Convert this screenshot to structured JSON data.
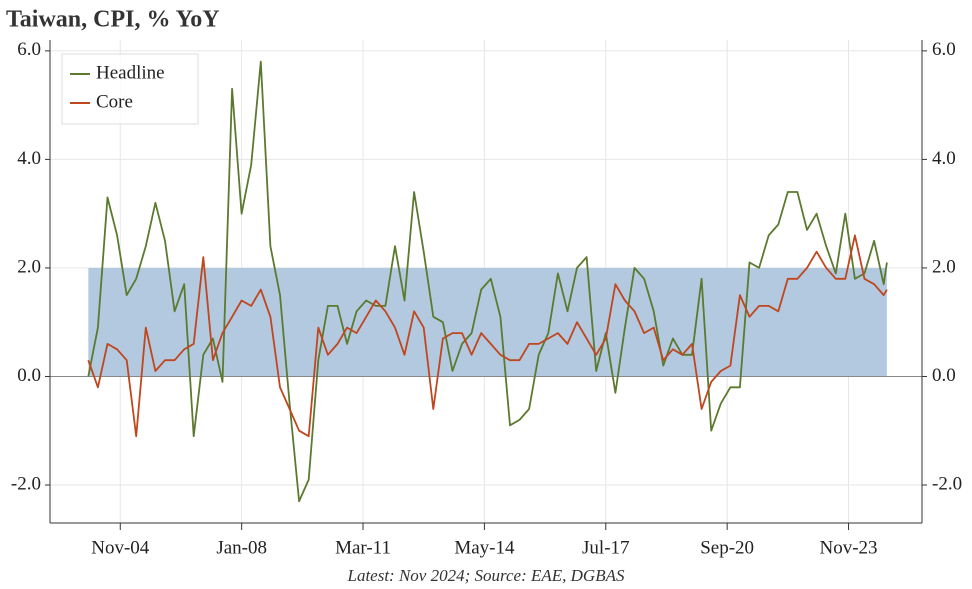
{
  "chart_data": {
    "type": "line",
    "title": "Taiwan, CPI, % YoY",
    "footnote": "Latest: Nov 2024; Source: EAE, DGBAS",
    "x": [
      "2004-01",
      "2004-04",
      "2004-07",
      "2004-10",
      "2005-01",
      "2005-04",
      "2005-07",
      "2005-10",
      "2006-01",
      "2006-04",
      "2006-07",
      "2006-10",
      "2007-01",
      "2007-04",
      "2007-07",
      "2007-10",
      "2008-01",
      "2008-04",
      "2008-07",
      "2008-10",
      "2009-01",
      "2009-04",
      "2009-07",
      "2009-10",
      "2010-01",
      "2010-04",
      "2010-07",
      "2010-10",
      "2011-01",
      "2011-04",
      "2011-07",
      "2011-10",
      "2012-01",
      "2012-04",
      "2012-07",
      "2012-10",
      "2013-01",
      "2013-04",
      "2013-07",
      "2013-10",
      "2014-01",
      "2014-04",
      "2014-07",
      "2014-10",
      "2015-01",
      "2015-04",
      "2015-07",
      "2015-10",
      "2016-01",
      "2016-04",
      "2016-07",
      "2016-10",
      "2017-01",
      "2017-04",
      "2017-07",
      "2017-10",
      "2018-01",
      "2018-04",
      "2018-07",
      "2018-10",
      "2019-01",
      "2019-04",
      "2019-07",
      "2019-10",
      "2020-01",
      "2020-04",
      "2020-07",
      "2020-10",
      "2021-01",
      "2021-04",
      "2021-07",
      "2021-10",
      "2022-01",
      "2022-04",
      "2022-07",
      "2022-10",
      "2023-01",
      "2023-04",
      "2023-07",
      "2023-10",
      "2024-01",
      "2024-04",
      "2024-07",
      "2024-10",
      "2024-11"
    ],
    "series": [
      {
        "name": "Headline",
        "color": "#5b7a2f",
        "values": [
          0.0,
          0.9,
          3.3,
          2.6,
          1.5,
          1.8,
          2.4,
          3.2,
          2.5,
          1.2,
          1.7,
          -1.1,
          0.4,
          0.7,
          -0.1,
          5.3,
          3.0,
          3.9,
          5.8,
          2.4,
          1.5,
          -0.5,
          -2.3,
          -1.9,
          0.3,
          1.3,
          1.3,
          0.6,
          1.2,
          1.4,
          1.3,
          1.3,
          2.4,
          1.4,
          3.4,
          2.3,
          1.1,
          1.0,
          0.1,
          0.6,
          0.8,
          1.6,
          1.8,
          1.1,
          -0.9,
          -0.8,
          -0.6,
          0.4,
          0.8,
          1.9,
          1.2,
          2.0,
          2.2,
          0.1,
          0.8,
          -0.3,
          0.9,
          2.0,
          1.8,
          1.2,
          0.2,
          0.7,
          0.4,
          0.4,
          1.8,
          -1.0,
          -0.5,
          -0.2,
          -0.2,
          2.1,
          2.0,
          2.6,
          2.8,
          3.4,
          3.4,
          2.7,
          3.0,
          2.4,
          1.9,
          3.0,
          1.8,
          1.9,
          2.5,
          1.7,
          2.1
        ]
      },
      {
        "name": "Core",
        "color": "#c0461e",
        "values": [
          0.3,
          -0.2,
          0.6,
          0.5,
          0.3,
          -1.1,
          0.9,
          0.1,
          0.3,
          0.3,
          0.5,
          0.6,
          2.2,
          0.3,
          0.8,
          1.1,
          1.4,
          1.3,
          1.6,
          1.1,
          -0.2,
          -0.6,
          -1.0,
          -1.1,
          0.9,
          0.4,
          0.6,
          0.9,
          0.8,
          1.1,
          1.4,
          1.2,
          0.9,
          0.4,
          1.2,
          0.9,
          -0.6,
          0.7,
          0.8,
          0.8,
          0.4,
          0.8,
          0.6,
          0.4,
          0.3,
          0.3,
          0.6,
          0.6,
          0.7,
          0.8,
          0.6,
          1.0,
          0.7,
          0.4,
          0.7,
          1.7,
          1.4,
          1.2,
          0.8,
          0.9,
          0.3,
          0.5,
          0.4,
          0.6,
          -0.6,
          -0.1,
          0.1,
          0.2,
          1.5,
          1.1,
          1.3,
          1.3,
          1.2,
          1.8,
          1.8,
          2.0,
          2.3,
          2.0,
          1.8,
          1.8,
          2.6,
          1.8,
          1.7,
          1.5,
          1.6
        ]
      }
    ],
    "shaded_range": [
      0,
      2
    ],
    "shaded_color": "#b2c9df",
    "xlim": [
      "2003-01",
      "2025-10"
    ],
    "xticks": [
      {
        "value": "2004-11",
        "label": "Nov-04"
      },
      {
        "value": "2008-01",
        "label": "Jan-08"
      },
      {
        "value": "2011-03",
        "label": "Mar-11"
      },
      {
        "value": "2014-05",
        "label": "May-14"
      },
      {
        "value": "2017-07",
        "label": "Jul-17"
      },
      {
        "value": "2020-09",
        "label": "Sep-20"
      },
      {
        "value": "2023-11",
        "label": "Nov-23"
      }
    ],
    "ylim": [
      -2.7,
      6.2
    ],
    "yticks": [
      {
        "value": -2,
        "label": "-2.0"
      },
      {
        "value": 0,
        "label": "0.0"
      },
      {
        "value": 2,
        "label": "2.0"
      },
      {
        "value": 4,
        "label": "4.0"
      },
      {
        "value": 6,
        "label": "6.0"
      }
    ],
    "y2lim": [
      -2.7,
      6.2
    ],
    "y2ticks": [
      {
        "value": -2,
        "label": "-2.0"
      },
      {
        "value": 0,
        "label": "0.0"
      },
      {
        "value": 2,
        "label": "2.0"
      },
      {
        "value": 4,
        "label": "4.0"
      },
      {
        "value": 6,
        "label": "6.0"
      }
    ],
    "grid": true,
    "legend": "upper left"
  }
}
